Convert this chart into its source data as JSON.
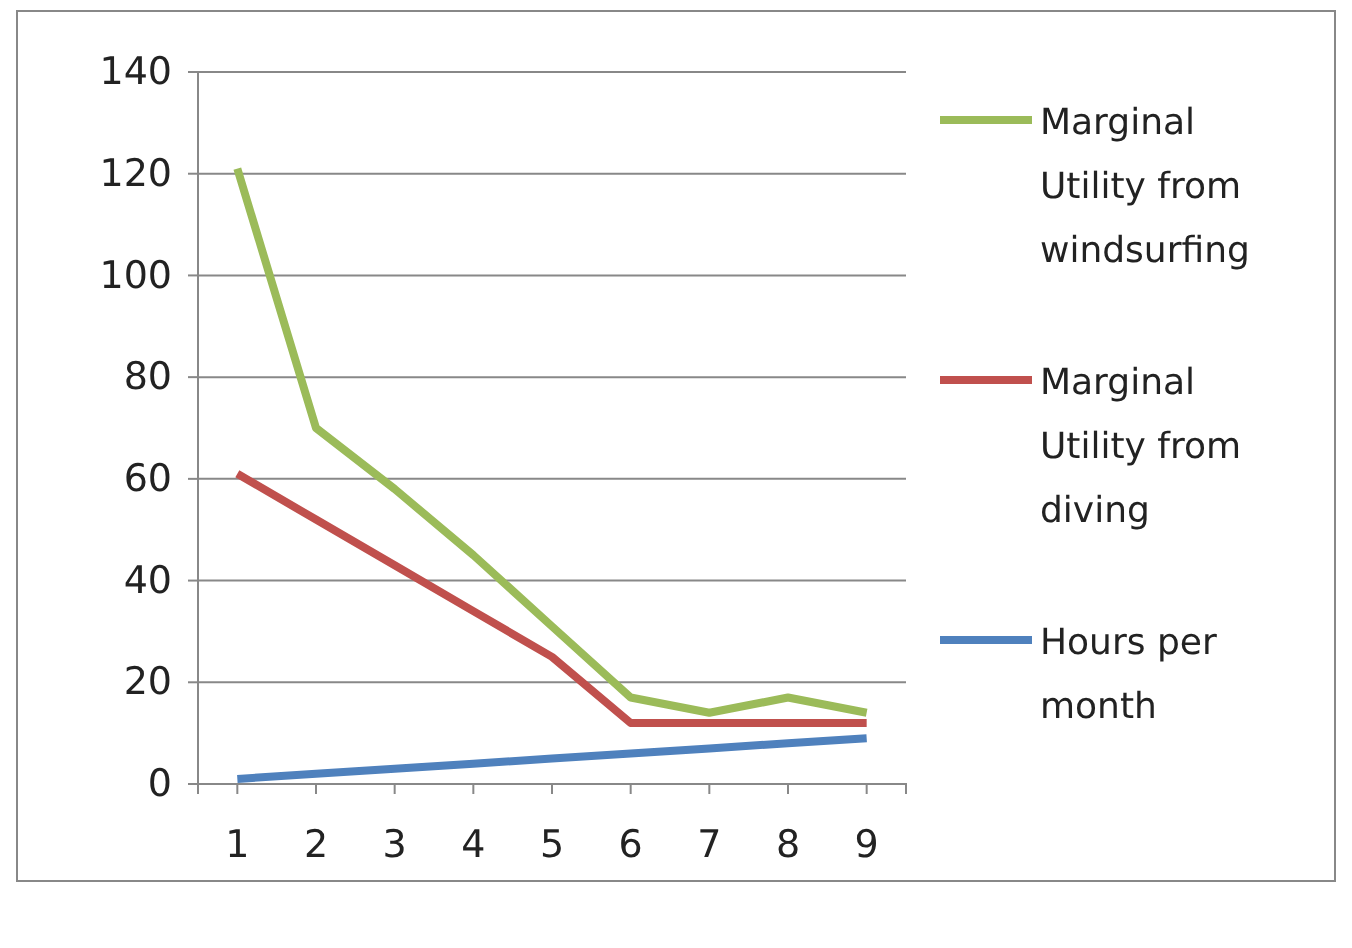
{
  "chart_data": {
    "type": "line",
    "categories": [
      "1",
      "2",
      "3",
      "4",
      "5",
      "6",
      "7",
      "8",
      "9"
    ],
    "series": [
      {
        "name": "Marginal Utility from windsurfing",
        "color": "#9bbb59",
        "values": [
          121,
          70,
          58,
          45,
          31,
          17,
          14,
          17,
          14
        ]
      },
      {
        "name": "Marginal Utility from diving",
        "color": "#c0504d",
        "values": [
          61,
          52,
          43,
          34,
          25,
          12,
          12,
          12,
          12
        ]
      },
      {
        "name": "Hours per month",
        "color": "#4f81bd",
        "values": [
          1,
          2,
          3,
          4,
          5,
          6,
          7,
          8,
          9
        ]
      }
    ],
    "ylim": [
      0,
      140
    ],
    "yticks": [
      0,
      20,
      40,
      60,
      80,
      100,
      120,
      140
    ],
    "grid": "y",
    "legend": "right",
    "marker": "none",
    "line_style": "solid"
  }
}
